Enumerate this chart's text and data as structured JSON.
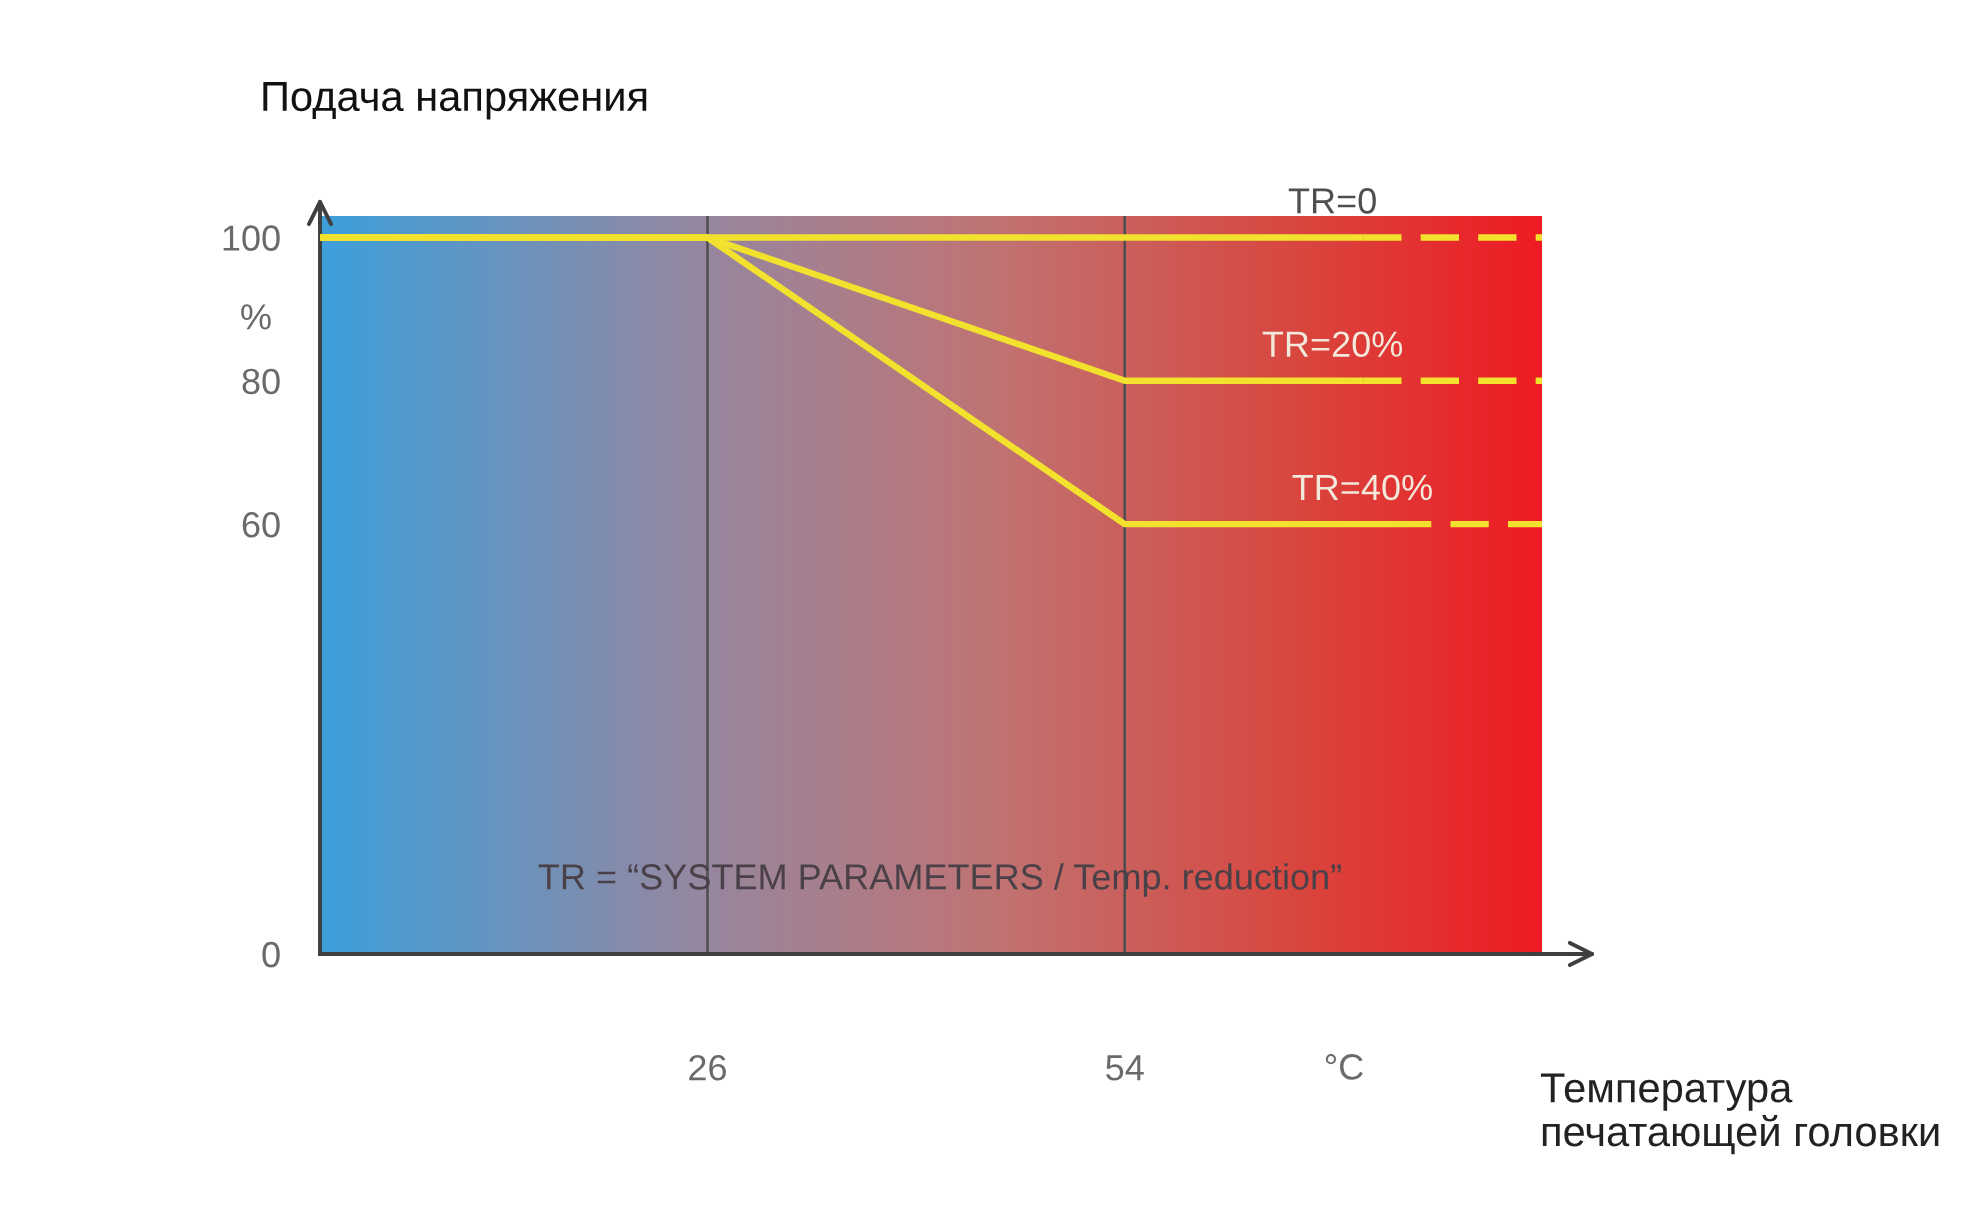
{
  "chart_data": {
    "type": "line",
    "ylabel": "Подача напряжения",
    "xlabel": "Температура\nпечатающей головки",
    "annotations": [
      "%",
      "°C",
      "TR = “SYSTEM PARAMETERS / Temp. reduction”"
    ],
    "xlim": [
      0,
      82
    ],
    "xticks": [
      26,
      54
    ],
    "ylim": [
      0,
      103
    ],
    "yticks": [
      0,
      60,
      80,
      100
    ],
    "legend": false,
    "ref_lines": [
      {
        "axis": "x",
        "value": 26,
        "color": "#4d4d4d"
      },
      {
        "axis": "x",
        "value": 54,
        "color": "#4d4d4d"
      }
    ],
    "series": [
      {
        "name": "TR=0",
        "color": "#f2e22e",
        "x": [
          0,
          26,
          54,
          70
        ],
        "values": [
          100,
          100,
          100,
          100
        ],
        "line_style": "solid"
      },
      {
        "color": "#f2e22e",
        "x": [
          70,
          82
        ],
        "values": [
          100,
          100
        ],
        "line_style": "dashed"
      },
      {
        "name": "TR=20%",
        "color": "#f2e22e",
        "x": [
          0,
          26,
          54,
          70
        ],
        "values": [
          100,
          100,
          80,
          80
        ],
        "line_style": "solid"
      },
      {
        "color": "#f2e22e",
        "x": [
          70,
          82
        ],
        "values": [
          80,
          80
        ],
        "line_style": "dashed"
      },
      {
        "name": "TR=40%",
        "color": "#f2e22e",
        "x": [
          0,
          26,
          54,
          72
        ],
        "values": [
          100,
          100,
          60,
          60
        ],
        "line_style": "solid"
      },
      {
        "color": "#f2e22e",
        "x": [
          72,
          82
        ],
        "values": [
          60,
          60
        ],
        "line_style": "dashed"
      }
    ]
  }
}
